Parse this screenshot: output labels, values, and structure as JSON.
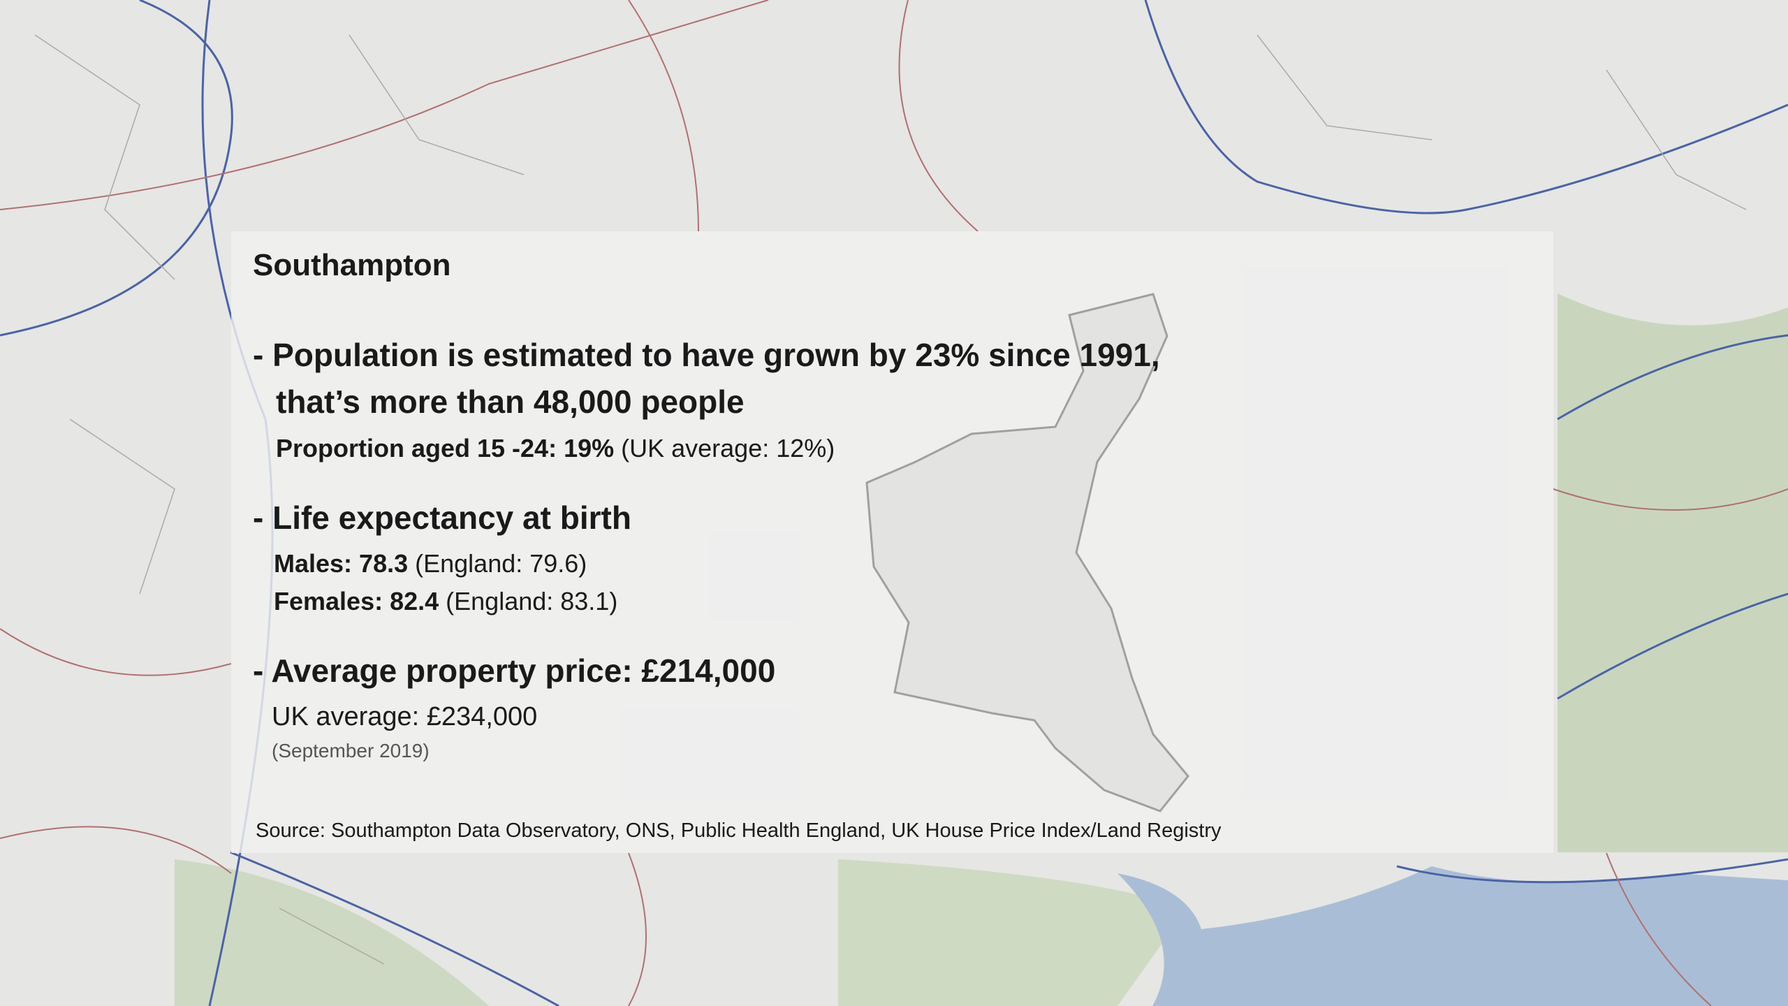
{
  "title": "Southampton",
  "population": {
    "headline": "- Population is estimated to have grown by 23% since 1991,",
    "headline_cont": "that’s more than 48,000 people",
    "detail_bold": "Proportion aged 15 -24: 19%",
    "detail": "(UK average: 12%)"
  },
  "life_expectancy": {
    "headline": "- Life expectancy at birth",
    "males_bold": "Males: 78.3",
    "males": "(England: 79.6)",
    "females_bold": "Females: 82.4",
    "females": "(England: 83.1)"
  },
  "property": {
    "headline": "- Average property price: £214,000",
    "comparison": "UK average: £234,000",
    "date": "(September 2019)"
  },
  "source": "Source: Southampton Data Observatory, ONS, Public Health England, UK House Price Index/Land Registry"
}
